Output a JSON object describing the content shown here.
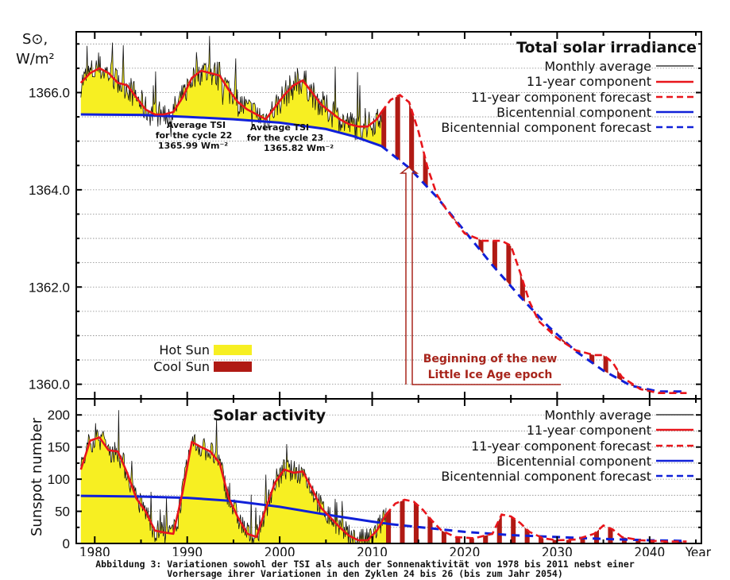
{
  "caption": {
    "line1": "Abbildung 3: Variationen sowohl der TSI als auch der Sonnenaktivität von 1978 bis 2011 nebst einer",
    "line2": "Vorhersage ihrer Variationen in den Zyklen 24 bis 26 (bis zum Jahr 2054)"
  },
  "colors": {
    "monthly": "#111111",
    "eleven_year": "#e8151b",
    "bicentennial": "#1020d8",
    "hot_sun": "#f7ef22",
    "cool_sun": "#b01a14",
    "grid": "#888888",
    "annotation_red": "#a8251c"
  },
  "chart_data": [
    {
      "type": "line",
      "title": "Total solar irradiance",
      "ylabel_line1": "S⊙,",
      "ylabel_line2": "W/m²",
      "xlabel": "Year",
      "xlim": [
        1978,
        2045.6
      ],
      "ylim": [
        1359.7,
        1367.25
      ],
      "yticks": [
        1360.0,
        1362.0,
        1364.0,
        1366.0
      ],
      "ytick_labels": [
        "1360.0",
        "1362.0",
        "1364.0",
        "1366.0"
      ],
      "grid": true,
      "grid_step": 0.5,
      "legend_position": "top-right",
      "legend": [
        {
          "label": "Monthly average",
          "style": "thin-solid",
          "color_key": "monthly"
        },
        {
          "label": "11-year component",
          "style": "solid",
          "color_key": "eleven_year"
        },
        {
          "label": "11-year component forecast",
          "style": "dashed",
          "color_key": "eleven_year"
        },
        {
          "label": "Bicentennial component",
          "style": "solid",
          "color_key": "bicentennial"
        },
        {
          "label": "Bicentennial component forecast",
          "style": "dashed",
          "color_key": "bicentennial"
        }
      ],
      "fill_legend": [
        {
          "label": "Hot Sun",
          "color_key": "hot_sun"
        },
        {
          "label": "Cool Sun",
          "color_key": "cool_sun"
        }
      ],
      "annotations": [
        {
          "lines": [
            "Average TSI",
            "for the cycle 22",
            "1365.99 Wm⁻²"
          ],
          "x": 1989.5,
          "y": 1365.1
        },
        {
          "lines": [
            "Average TSI",
            "for the cycle 23",
            "1365.82 Wm⁻²"
          ],
          "x": 2000.5,
          "y": 1365.0
        }
      ],
      "arrow_annotation": {
        "lines": [
          "Beginning of the new",
          "Little Ice Age epoch"
        ],
        "x": 2013.0
      },
      "series": [
        {
          "name": "Bicentennial component",
          "x": [
            1978.5,
            1985,
            1990,
            1995,
            2000,
            2005,
            2008,
            2011
          ],
          "y": [
            1365.55,
            1365.54,
            1365.5,
            1365.45,
            1365.38,
            1365.25,
            1365.1,
            1364.9
          ]
        },
        {
          "name": "Bicentennial component forecast",
          "x": [
            2011,
            2014,
            2017,
            2020,
            2023,
            2026,
            2029,
            2032,
            2035,
            2038,
            2041,
            2044
          ],
          "y": [
            1364.9,
            1364.45,
            1363.85,
            1363.15,
            1362.45,
            1361.8,
            1361.2,
            1360.68,
            1360.28,
            1359.97,
            1359.85,
            1359.85
          ]
        },
        {
          "name": "11-year component",
          "x": [
            1978.5,
            1979.5,
            1980.5,
            1981.5,
            1982.5,
            1983.5,
            1984.5,
            1985.5,
            1986.5,
            1987.5,
            1988.5,
            1989.5,
            1990.5,
            1991.5,
            1992.5,
            1993.5,
            1994.5,
            1995.5,
            1996.5,
            1997.5,
            1998.5,
            1999.5,
            2000.5,
            2001.5,
            2002.5,
            2003.5,
            2004.5,
            2005.5,
            2006.5,
            2007.5,
            2008.5,
            2009.5,
            2010.5,
            2011
          ],
          "y": [
            1366.2,
            1366.4,
            1366.5,
            1366.4,
            1366.2,
            1366.15,
            1365.9,
            1365.65,
            1365.55,
            1365.55,
            1365.6,
            1365.9,
            1366.3,
            1366.45,
            1366.4,
            1366.35,
            1366.05,
            1365.8,
            1365.65,
            1365.55,
            1365.45,
            1365.7,
            1365.95,
            1366.15,
            1366.25,
            1366.0,
            1365.75,
            1365.6,
            1365.45,
            1365.35,
            1365.3,
            1365.3,
            1365.45,
            1365.6
          ]
        },
        {
          "name": "11-year component forecast",
          "x": [
            2011,
            2012,
            2013,
            2014,
            2015,
            2016,
            2017,
            2018,
            2020,
            2022,
            2024,
            2025,
            2026,
            2027,
            2028,
            2030,
            2032,
            2034,
            2035,
            2036,
            2037,
            2039,
            2041,
            2044
          ],
          "y": [
            1365.6,
            1365.85,
            1365.95,
            1365.8,
            1365.2,
            1364.45,
            1363.9,
            1363.6,
            1363.1,
            1362.95,
            1362.95,
            1362.85,
            1362.3,
            1361.7,
            1361.3,
            1360.95,
            1360.7,
            1360.6,
            1360.6,
            1360.45,
            1360.15,
            1359.9,
            1359.82,
            1359.82
          ]
        }
      ]
    },
    {
      "type": "line",
      "title": "Solar activity",
      "ylabel": "Sunspot number",
      "xlabel": "Year",
      "xlim": [
        1978,
        2045.6
      ],
      "ylim": [
        0,
        225
      ],
      "yticks": [
        0,
        50,
        100,
        150,
        200
      ],
      "ytick_labels": [
        "0",
        "50",
        "100",
        "150",
        "200"
      ],
      "xticks": [
        1980,
        1990,
        2000,
        2010,
        2020,
        2030,
        2040
      ],
      "xtick_labels": [
        "1980",
        "1990",
        "2000",
        "2010",
        "2020",
        "2030",
        "2040"
      ],
      "grid": true,
      "grid_step": 25,
      "legend_position": "top-right",
      "legend": [
        {
          "label": "Monthly average",
          "style": "thin-solid",
          "color_key": "monthly"
        },
        {
          "label": "11-year component",
          "style": "solid",
          "color_key": "eleven_year"
        },
        {
          "label": "11-year component forecast",
          "style": "dashed",
          "color_key": "eleven_year"
        },
        {
          "label": "Bicentennial component",
          "style": "solid",
          "color_key": "bicentennial"
        },
        {
          "label": "Bicentennial component forecast",
          "style": "dashed",
          "color_key": "bicentennial"
        }
      ],
      "series": [
        {
          "name": "Bicentennial component",
          "x": [
            1978.5,
            1985,
            1990,
            1995,
            2000,
            2005,
            2010,
            2012
          ],
          "y": [
            74,
            73,
            71,
            66,
            57,
            45,
            34,
            30
          ]
        },
        {
          "name": "Bicentennial component forecast",
          "x": [
            2012,
            2016,
            2020,
            2025,
            2030,
            2035,
            2040,
            2044
          ],
          "y": [
            30,
            24,
            18,
            13,
            10,
            7,
            5,
            4
          ]
        },
        {
          "name": "11-year component",
          "x": [
            1978.5,
            1979.5,
            1980.5,
            1981.5,
            1982.5,
            1983.5,
            1984.5,
            1985.5,
            1986.5,
            1987.5,
            1988.5,
            1989.5,
            1990.5,
            1991.5,
            1992.5,
            1993.5,
            1994.5,
            1995.5,
            1996.5,
            1997.5,
            1998.5,
            1999.5,
            2000.5,
            2001.5,
            2002.5,
            2003.5,
            2004.5,
            2005.5,
            2006.5,
            2007.5,
            2008.5,
            2009.5,
            2010.5,
            2011.5
          ],
          "y": [
            115,
            160,
            165,
            145,
            143,
            110,
            70,
            50,
            20,
            17,
            15,
            80,
            158,
            150,
            143,
            125,
            70,
            40,
            15,
            10,
            55,
            95,
            115,
            110,
            112,
            85,
            55,
            40,
            25,
            12,
            5,
            5,
            20,
            45
          ]
        },
        {
          "name": "11-year component forecast",
          "x": [
            2011.5,
            2012.5,
            2013.5,
            2014.5,
            2015.5,
            2016.5,
            2017.5,
            2019,
            2021,
            2023,
            2024,
            2025,
            2026,
            2027,
            2028.5,
            2030,
            2032,
            2034,
            2035,
            2036,
            2037,
            2039,
            2042,
            2044
          ],
          "y": [
            45,
            62,
            68,
            65,
            52,
            35,
            20,
            10,
            8,
            15,
            45,
            42,
            32,
            18,
            8,
            5,
            6,
            15,
            28,
            22,
            10,
            5,
            3,
            3
          ]
        }
      ]
    }
  ]
}
